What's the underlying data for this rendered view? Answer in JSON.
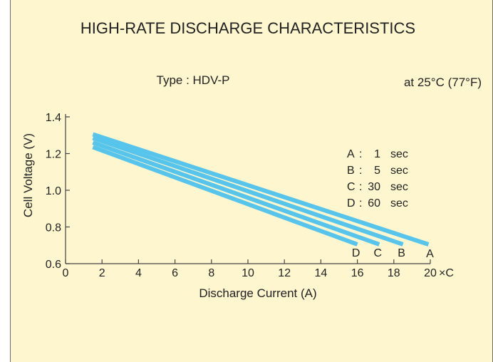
{
  "chart_data": {
    "type": "line",
    "title": "HIGH-RATE DISCHARGE CHARACTERISTICS",
    "subtitle_left": "Type : HDV-P",
    "subtitle_right": "at 25°C (77°F)",
    "xlabel": "Discharge Current (A)",
    "ylabel": "Cell Voltage (V)",
    "x_unit_suffix": "×C",
    "xlim": [
      0,
      20
    ],
    "ylim": [
      0.6,
      1.4
    ],
    "xticks": [
      0,
      2,
      4,
      6,
      8,
      10,
      12,
      14,
      16,
      18,
      20
    ],
    "yticks": [
      "0.6",
      "0.8",
      "1.0",
      "1.2",
      "1.4"
    ],
    "series": [
      {
        "name": "A",
        "x": [
          1.5,
          19.9
        ],
        "y": [
          1.305,
          0.705
        ]
      },
      {
        "name": "B",
        "x": [
          1.5,
          18.5
        ],
        "y": [
          1.285,
          0.705
        ]
      },
      {
        "name": "C",
        "x": [
          1.5,
          17.2
        ],
        "y": [
          1.26,
          0.705
        ]
      },
      {
        "name": "D",
        "x": [
          1.5,
          16.0
        ],
        "y": [
          1.235,
          0.705
        ]
      }
    ],
    "legend_entries": [
      {
        "key": "A",
        "sep": ":",
        "value": "1",
        "unit": "sec"
      },
      {
        "key": "B",
        "sep": ":",
        "value": "5",
        "unit": "sec"
      },
      {
        "key": "C",
        "sep": ":",
        "value": "30",
        "unit": "sec"
      },
      {
        "key": "D",
        "sep": ":",
        "value": "60",
        "unit": "sec"
      }
    ],
    "line_color": "#57c4ec"
  }
}
